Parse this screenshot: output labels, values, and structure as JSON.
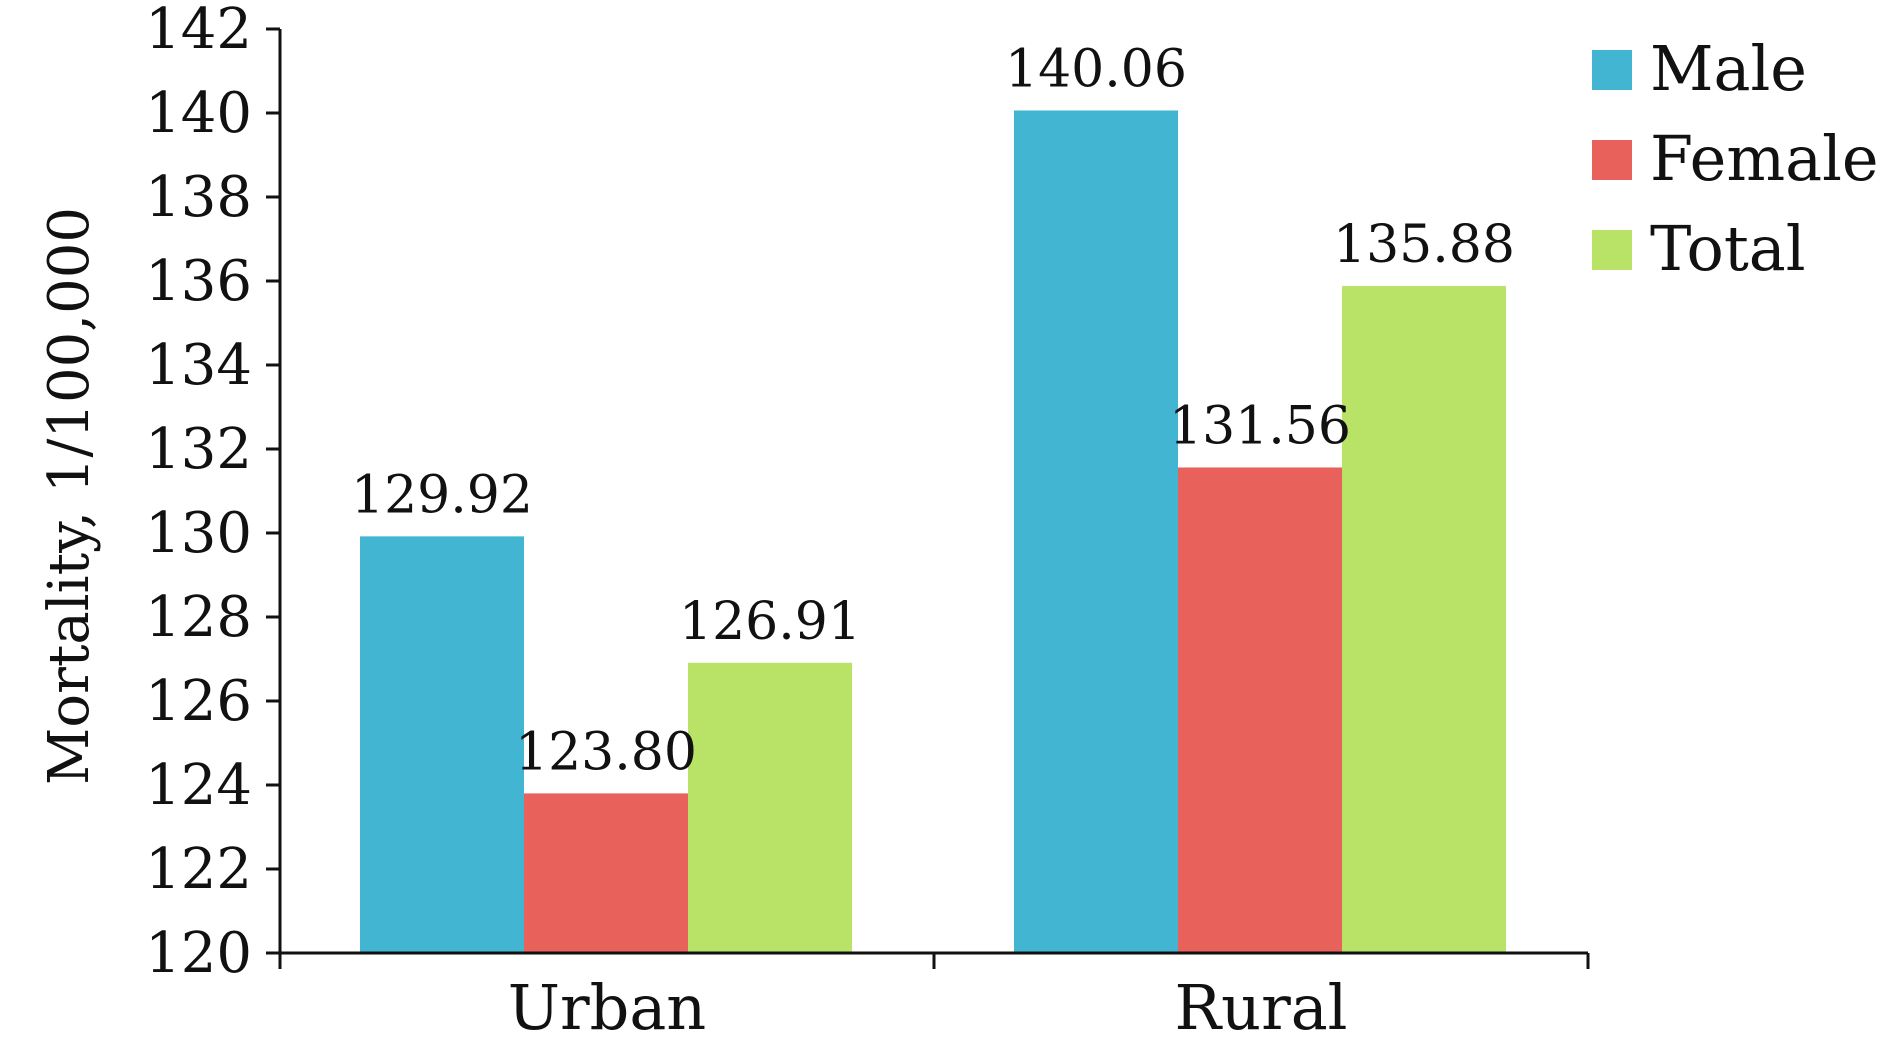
{
  "chart_data": {
    "type": "bar",
    "categories": [
      "Urban",
      "Rural"
    ],
    "series": [
      {
        "name": "Male",
        "color": "#42b5d2",
        "values": [
          129.92,
          140.06
        ],
        "labels": [
          "129.92",
          "140.06"
        ]
      },
      {
        "name": "Female",
        "color": "#e8615a",
        "values": [
          123.8,
          131.56
        ],
        "labels": [
          "123.80",
          "131.56"
        ]
      },
      {
        "name": "Total",
        "color": "#b9e366",
        "values": [
          126.91,
          135.88
        ],
        "labels": [
          "126.91",
          "135.88"
        ]
      }
    ],
    "ylabel": "Mortality, 1/100,000",
    "xlabel": "",
    "ylim": [
      120,
      142
    ],
    "yticks": [
      120,
      122,
      124,
      126,
      128,
      130,
      132,
      134,
      136,
      138,
      140,
      142
    ],
    "grid": false,
    "legend_position": "top-right"
  }
}
